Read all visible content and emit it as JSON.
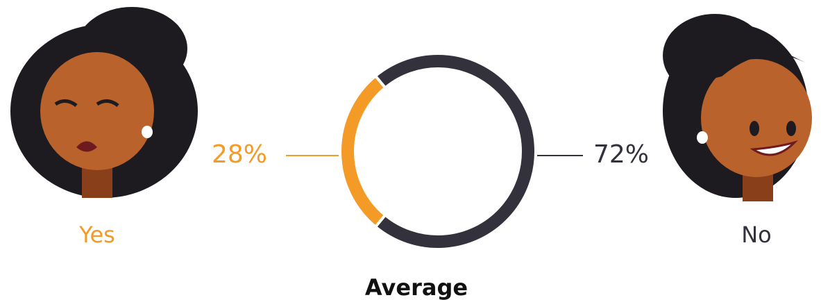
{
  "chart_data": {
    "type": "donut",
    "title": "Average",
    "categories": [
      "Yes",
      "No"
    ],
    "values": [
      28,
      72
    ],
    "value_labels": [
      "28%",
      "72%"
    ],
    "colors": [
      "#f39b26",
      "#33313b"
    ]
  }
}
